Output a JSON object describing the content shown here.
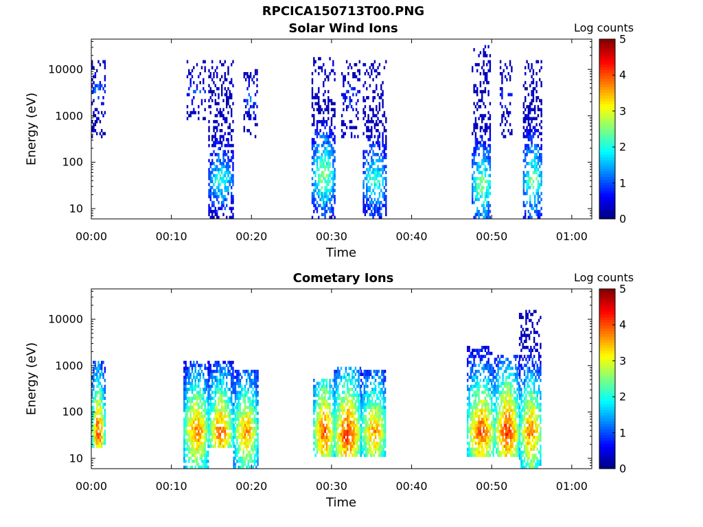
{
  "figure_title": "RPCICA150713T00.PNG",
  "colors": {
    "colormap": [
      "#00007f",
      "#0000ff",
      "#007fff",
      "#00ffff",
      "#7fff7f",
      "#ffff00",
      "#ff7f00",
      "#ff0000",
      "#7f0000"
    ]
  },
  "chart_data": [
    {
      "type": "heatmap",
      "title": "Solar Wind Ions",
      "xlabel": "Time",
      "ylabel": "Energy (eV)",
      "x_ticks": [
        "00:00",
        "00:10",
        "00:20",
        "00:30",
        "00:40",
        "00:50",
        "01:00"
      ],
      "x_tick_minutes": [
        0,
        10,
        20,
        30,
        40,
        50,
        60
      ],
      "xlim_minutes": [
        0,
        62.5
      ],
      "y_scale": "log",
      "y_ticks": [
        "10",
        "100",
        "1000",
        "10000"
      ],
      "y_tick_values": [
        10,
        100,
        1000,
        10000
      ],
      "ylim": [
        6,
        45000
      ],
      "colorbar": {
        "label": "Log counts",
        "range": [
          0,
          5
        ],
        "ticks": [
          "0",
          "1",
          "2",
          "3",
          "4",
          "5"
        ]
      },
      "bursts": [
        {
          "start_min": 0.0,
          "end_min": 1.6,
          "e_low": 300,
          "e_high": 15000,
          "peak_e": 3000,
          "peak_level": 1.2,
          "density": 0.35
        },
        {
          "start_min": 11.9,
          "end_min": 14.2,
          "e_low": 700,
          "e_high": 15000,
          "peak_e": 3000,
          "peak_level": 1.0,
          "density": 0.25
        },
        {
          "start_min": 14.6,
          "end_min": 17.6,
          "e_low": 6,
          "e_high": 14000,
          "peak_e": 40,
          "peak_level": 2.0,
          "density": 0.6
        },
        {
          "start_min": 19.0,
          "end_min": 20.7,
          "e_low": 300,
          "e_high": 9000,
          "peak_e": 2000,
          "peak_level": 1.1,
          "density": 0.35
        },
        {
          "start_min": 27.5,
          "end_min": 30.3,
          "e_low": 6,
          "e_high": 18000,
          "peak_e": 50,
          "peak_level": 2.6,
          "density": 0.6
        },
        {
          "start_min": 31.2,
          "end_min": 33.5,
          "e_low": 300,
          "e_high": 15000,
          "peak_e": 2500,
          "peak_level": 1.0,
          "density": 0.3
        },
        {
          "start_min": 33.9,
          "end_min": 36.8,
          "e_low": 6,
          "e_high": 15000,
          "peak_e": 40,
          "peak_level": 2.2,
          "density": 0.6
        },
        {
          "start_min": 47.5,
          "end_min": 49.9,
          "e_low": 6,
          "e_high": 35000,
          "peak_e": 30,
          "peak_level": 2.6,
          "density": 0.6
        },
        {
          "start_min": 51.0,
          "end_min": 52.6,
          "e_low": 300,
          "e_high": 15000,
          "peak_e": 2500,
          "peak_level": 1.0,
          "density": 0.3
        },
        {
          "start_min": 53.9,
          "end_min": 56.2,
          "e_low": 6,
          "e_high": 15000,
          "peak_e": 40,
          "peak_level": 2.5,
          "density": 0.6
        }
      ]
    },
    {
      "type": "heatmap",
      "title": "Cometary Ions",
      "xlabel": "Time",
      "ylabel": "Energy (eV)",
      "x_ticks": [
        "00:00",
        "00:10",
        "00:20",
        "00:30",
        "00:40",
        "00:50",
        "01:00"
      ],
      "x_tick_minutes": [
        0,
        10,
        20,
        30,
        40,
        50,
        60
      ],
      "xlim_minutes": [
        0,
        62.5
      ],
      "y_scale": "log",
      "y_ticks": [
        "10",
        "100",
        "1000",
        "10000"
      ],
      "y_tick_values": [
        10,
        100,
        1000,
        10000
      ],
      "ylim": [
        6,
        45000
      ],
      "colorbar": {
        "label": "Log counts",
        "range": [
          0,
          5
        ],
        "ticks": [
          "0",
          "1",
          "2",
          "3",
          "4",
          "5"
        ]
      },
      "bursts": [
        {
          "start_min": 0.0,
          "end_min": 1.6,
          "e_low": 15,
          "e_high": 1200,
          "peak_e": 35,
          "peak_level": 4.0,
          "density": 0.85
        },
        {
          "start_min": 11.5,
          "end_min": 14.6,
          "e_low": 6,
          "e_high": 1100,
          "peak_e": 35,
          "peak_level": 3.8,
          "density": 0.85
        },
        {
          "start_min": 14.6,
          "end_min": 17.6,
          "e_low": 15,
          "e_high": 1200,
          "peak_e": 35,
          "peak_level": 3.8,
          "density": 0.85
        },
        {
          "start_min": 17.7,
          "end_min": 20.8,
          "e_low": 6,
          "e_high": 700,
          "peak_e": 35,
          "peak_level": 3.6,
          "density": 0.85
        },
        {
          "start_min": 27.7,
          "end_min": 30.3,
          "e_low": 10,
          "e_high": 500,
          "peak_e": 35,
          "peak_level": 4.0,
          "density": 0.85
        },
        {
          "start_min": 30.3,
          "end_min": 33.6,
          "e_low": 10,
          "e_high": 900,
          "peak_e": 30,
          "peak_level": 4.2,
          "density": 0.85
        },
        {
          "start_min": 33.6,
          "end_min": 36.8,
          "e_low": 10,
          "e_high": 700,
          "peak_e": 35,
          "peak_level": 3.6,
          "density": 0.85
        },
        {
          "start_min": 46.9,
          "end_min": 50.3,
          "e_low": 10,
          "e_high": 2500,
          "peak_e": 35,
          "peak_level": 4.0,
          "density": 0.85
        },
        {
          "start_min": 50.3,
          "end_min": 53.4,
          "e_low": 10,
          "e_high": 1500,
          "peak_e": 35,
          "peak_level": 4.2,
          "density": 0.85
        },
        {
          "start_min": 53.4,
          "end_min": 56.2,
          "e_low": 6,
          "e_high": 14000,
          "peak_e": 35,
          "peak_level": 3.8,
          "density": 0.8
        }
      ]
    }
  ]
}
